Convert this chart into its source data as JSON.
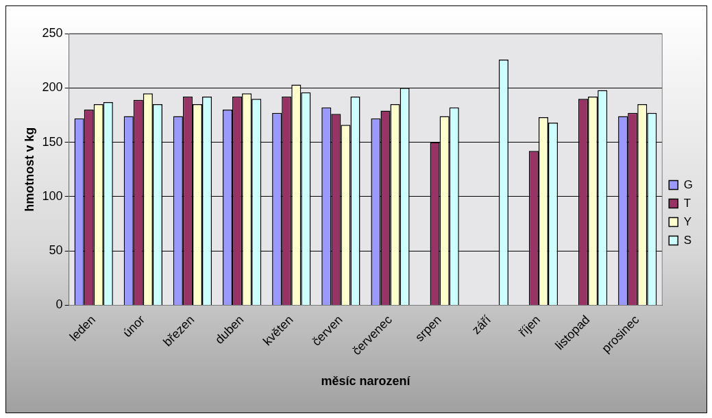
{
  "chart_data": {
    "type": "bar",
    "xlabel": "měsíc narození",
    "ylabel": "hmotnost v kg",
    "categories": [
      "leden",
      "únor",
      "březen",
      "duben",
      "květen",
      "červen",
      "červenec",
      "srpen",
      "září",
      "říjen",
      "listopad",
      "prosinec"
    ],
    "series": [
      {
        "name": "G",
        "color": "#9999ff",
        "values": [
          172,
          174,
          174,
          180,
          177,
          182,
          172,
          null,
          null,
          null,
          null,
          174
        ]
      },
      {
        "name": "T",
        "color": "#993366",
        "values": [
          180,
          189,
          192,
          192,
          192,
          176,
          179,
          150,
          null,
          142,
          190,
          177
        ]
      },
      {
        "name": "Y",
        "color": "#ffffcc",
        "values": [
          185,
          195,
          185,
          195,
          203,
          166,
          185,
          174,
          null,
          173,
          192,
          185
        ]
      },
      {
        "name": "S",
        "color": "#ccffff",
        "values": [
          187,
          185,
          192,
          190,
          196,
          192,
          200,
          182,
          226,
          168,
          198,
          177
        ]
      }
    ],
    "ylim": [
      0,
      250
    ],
    "yticks": [
      0,
      50,
      100,
      150,
      200,
      250
    ],
    "grid": "y",
    "legend": "right"
  }
}
